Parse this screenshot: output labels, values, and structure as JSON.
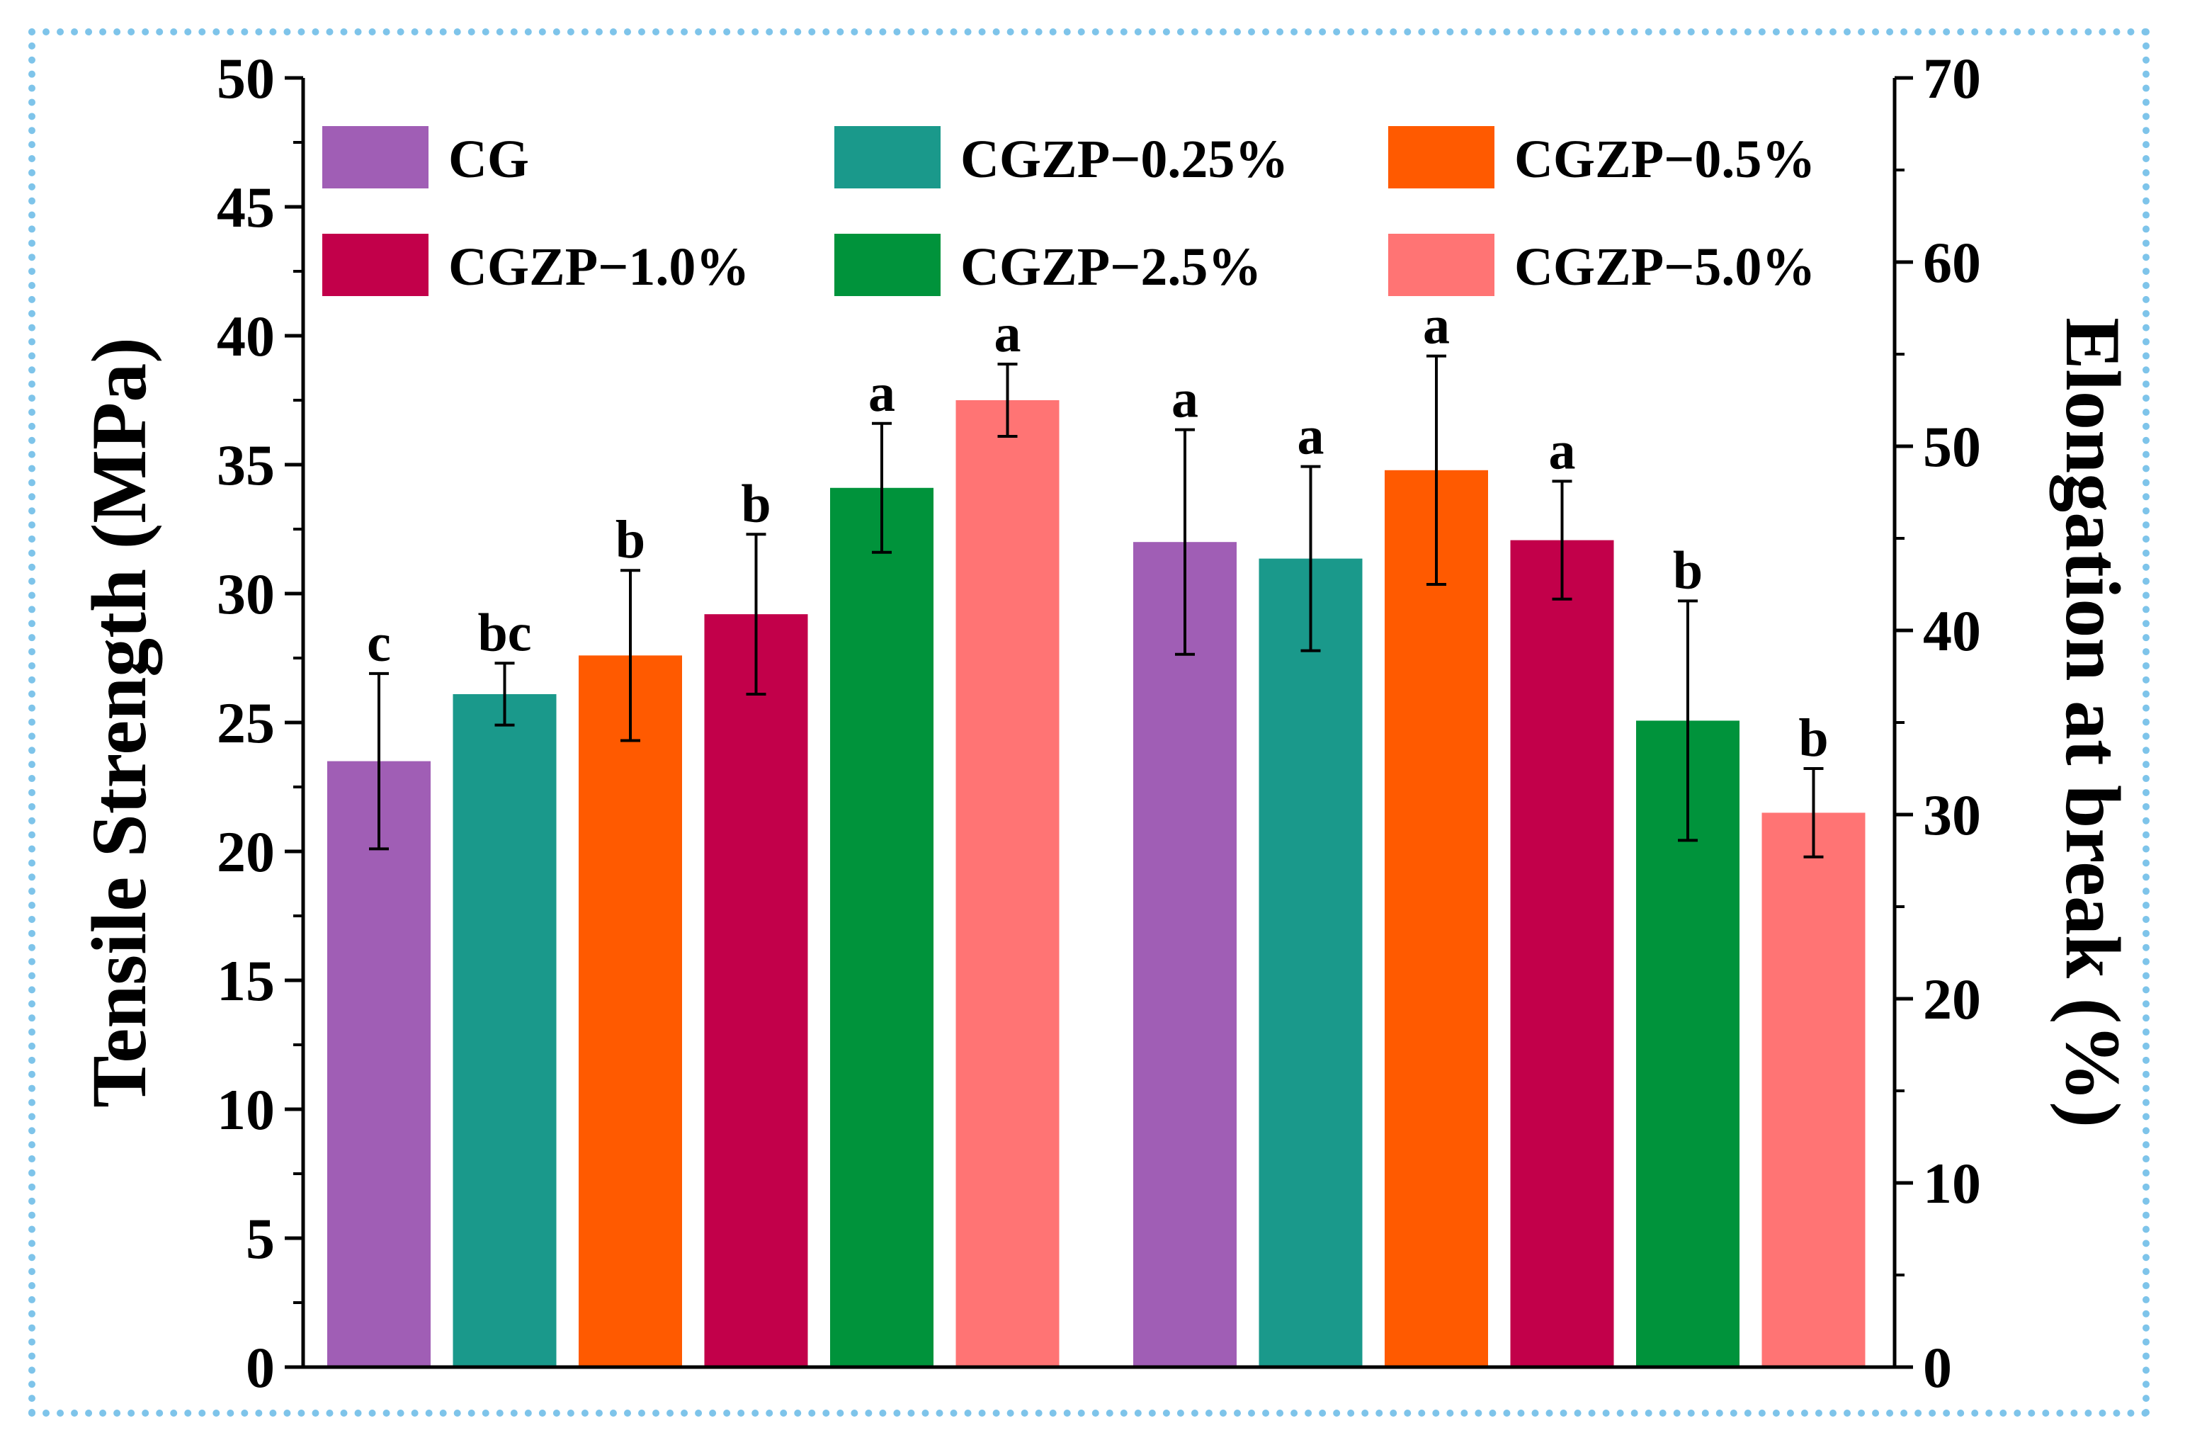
{
  "chart_data": {
    "type": "bar",
    "left_axis": {
      "label": "Tensile Strength (MPa)",
      "ylim": [
        0,
        50
      ],
      "ticks": [
        "0",
        "5",
        "10",
        "15",
        "20",
        "25",
        "30",
        "35",
        "40",
        "45",
        "50"
      ]
    },
    "right_axis": {
      "label": "Elongation at break (%)",
      "ylim": [
        0,
        70
      ],
      "ticks": [
        "0",
        "10",
        "20",
        "30",
        "40",
        "50",
        "60",
        "70"
      ]
    },
    "series": [
      {
        "name": "CG",
        "color": "#a05eb5"
      },
      {
        "name": "CGZP−0.25%",
        "color": "#1a998b"
      },
      {
        "name": "CGZP−0.5%",
        "color": "#ff5a00"
      },
      {
        "name": "CGZP−1.0%",
        "color": "#c2004a"
      },
      {
        "name": "CGZP−2.5%",
        "color": "#00933b"
      },
      {
        "name": "CGZP−5.0%",
        "color": "#ff7474"
      }
    ],
    "groups": [
      {
        "name": "Tensile Strength",
        "axis": "left",
        "values": [
          23.5,
          26.1,
          27.6,
          29.2,
          34.1,
          37.5
        ],
        "errors": [
          3.4,
          1.2,
          3.3,
          3.1,
          2.5,
          1.4
        ],
        "letters": [
          "c",
          "bc",
          "b",
          "b",
          "a",
          "a"
        ]
      },
      {
        "name": "Elongation at break",
        "axis": "right",
        "values": [
          44.8,
          43.9,
          48.7,
          44.9,
          35.1,
          30.1
        ],
        "errors": [
          6.1,
          5.0,
          6.2,
          3.2,
          6.5,
          2.4
        ],
        "letters": [
          "a",
          "a",
          "a",
          "a",
          "b",
          "b"
        ]
      }
    ]
  }
}
